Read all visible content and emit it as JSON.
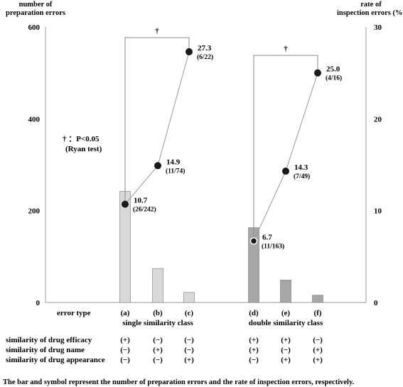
{
  "chart_data": {
    "type": "bar",
    "left_axis": {
      "label_line1": "number of",
      "label_line2": "preparation errors",
      "ylim": [
        0,
        600
      ],
      "ticks": [
        "0",
        "200",
        "400",
        "600"
      ]
    },
    "right_axis": {
      "label_line1": "rate of",
      "label_line2": "inspection errors (%)",
      "ylim": [
        0,
        30
      ],
      "ticks": [
        "0",
        "10",
        "20",
        "30"
      ]
    },
    "error_type_label": "error type",
    "categories": [
      "(a)",
      "(b)",
      "(c)",
      "(d)",
      "(e)",
      "(f)"
    ],
    "groups": [
      {
        "label": "single similarity class",
        "bar_color": "#d9d9d9"
      },
      {
        "label": "double similarity class",
        "bar_color": "#a6a6a6"
      }
    ],
    "bar_values": [
      242,
      74,
      22,
      163,
      49,
      16
    ],
    "rate_values": [
      10.7,
      14.9,
      27.3,
      6.7,
      14.3,
      25.0
    ],
    "rate_labels": [
      "10.7",
      "14.9",
      "27.3",
      "6.7",
      "14.3",
      "25.0"
    ],
    "fraction_labels": [
      "(26/242)",
      "(11/74)",
      "(6/22)",
      "(11/163)",
      "(7/49)",
      "(4/16)"
    ],
    "significance_mark": "†",
    "significance_note": "† ：P<0.05",
    "significance_test": "(Ryan test)",
    "similarity_rows": [
      {
        "label": "similarity  of drug efficacy",
        "values": [
          "(+)",
          "(−)",
          "(−)",
          "(+)",
          "(+)",
          "(−)"
        ]
      },
      {
        "label": "similarity  of drug name",
        "values": [
          "(−)",
          "(+)",
          "(−)",
          "(+)",
          "(−)",
          "(+)"
        ]
      },
      {
        "label": "similarity  of drug appearance",
        "values": [
          "(−)",
          "(−)",
          "(+)",
          "(−)",
          "(+)",
          "(+)"
        ]
      }
    ],
    "caption": "The bar and symbol represent the number of preparation errors and the rate of inspection errors, respectively."
  }
}
